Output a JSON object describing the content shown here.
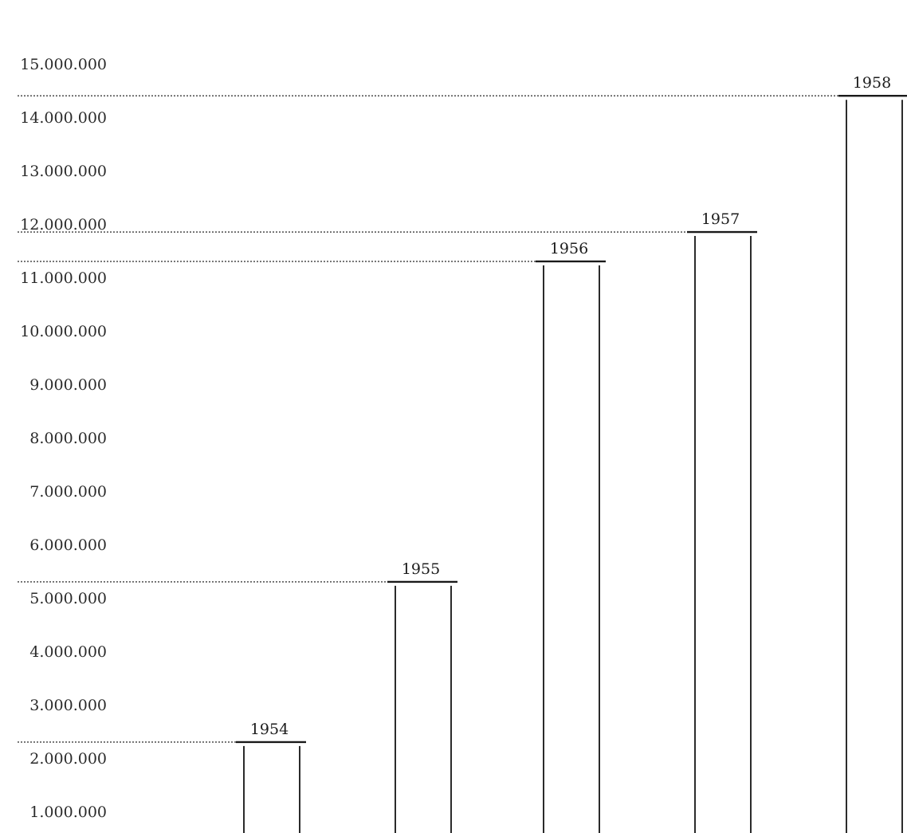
{
  "chart_data": {
    "type": "bar",
    "categories": [
      "1954",
      "1955",
      "1956",
      "1957",
      "1958"
    ],
    "values": [
      2300000,
      5300000,
      11300000,
      11850000,
      14400000
    ],
    "ylim": [
      0,
      15000000
    ],
    "y_tick_labels": [
      "1.000.000",
      "2.000.000",
      "3.000.000",
      "4.000.000",
      "5.000.000",
      "6.000.000",
      "7.000.000",
      "8.000.000",
      "9.000.000",
      "10.000.000",
      "11.000.000",
      "12.000.000",
      "13.000.000",
      "14.000.000",
      "15.000.000"
    ],
    "y_tick_values": [
      1000000,
      2000000,
      3000000,
      4000000,
      5000000,
      6000000,
      7000000,
      8000000,
      9000000,
      10000000,
      11000000,
      12000000,
      13000000,
      14000000,
      15000000
    ],
    "bar_style": "open outlined columns with heavy top rule",
    "reference_lines": "dotted lines from the y axis to each bar top",
    "grid": false,
    "legend": "none"
  }
}
